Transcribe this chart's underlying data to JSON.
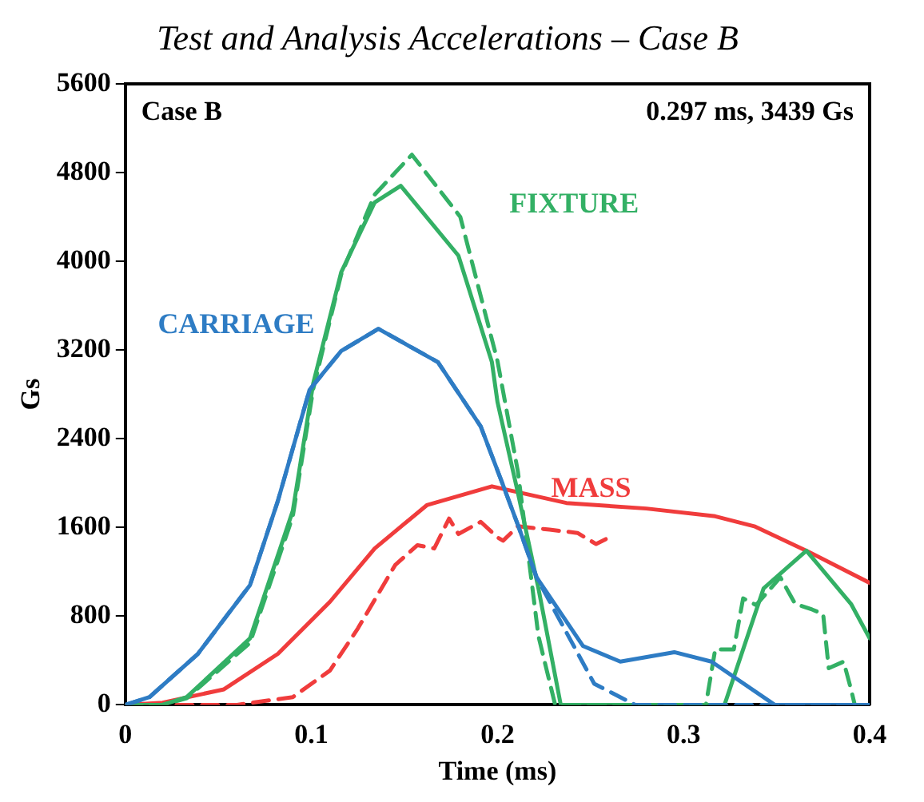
{
  "chart_data": {
    "type": "line",
    "title": "Test and Analysis Accelerations – Case B",
    "xlabel": "Time (ms)",
    "ylabel": "Gs",
    "annotations": [
      "Case B",
      "0.297 ms, 3439 Gs"
    ],
    "xlim": [
      0,
      0.4
    ],
    "xticks": [
      0,
      0.1,
      0.2,
      0.3,
      0.4
    ],
    "ylim": [
      0,
      5600
    ],
    "yticks": [
      0,
      800,
      1600,
      2400,
      3200,
      4000,
      4800,
      5600
    ],
    "grid": false,
    "legend": false,
    "marker": "none",
    "series": [
      {
        "name": "CARRIAGE",
        "color": "#2e7cc4",
        "line_style": "solid",
        "x": [
          0,
          0.013,
          0.039,
          0.067,
          0.082,
          0.099,
          0.116,
          0.136,
          0.168,
          0.191,
          0.203,
          0.211,
          0.221,
          0.246,
          0.266,
          0.295,
          0.315,
          0.349,
          0.4
        ],
        "values": [
          0,
          70,
          460,
          1080,
          1840,
          2840,
          3190,
          3390,
          3090,
          2510,
          1980,
          1620,
          1150,
          530,
          390,
          475,
          390,
          0,
          0
        ]
      },
      {
        "color": "#2e7cc4",
        "line_style": "dashed",
        "x": [
          0,
          0.013,
          0.039,
          0.067,
          0.082,
          0.099,
          0.116,
          0.136,
          0.168,
          0.191,
          0.203,
          0.211,
          0.221,
          0.252,
          0.274,
          0.4
        ],
        "values": [
          0,
          70,
          460,
          1080,
          1840,
          2840,
          3190,
          3390,
          3090,
          2510,
          1980,
          1620,
          1150,
          190,
          0,
          0
        ]
      },
      {
        "name": "FIXTURE",
        "color": "#33b065",
        "line_style": "solid",
        "x": [
          0,
          0.02,
          0.033,
          0.067,
          0.09,
          0.101,
          0.116,
          0.134,
          0.148,
          0.179,
          0.197,
          0.2,
          0.211,
          0.222,
          0.234,
          0.322,
          0.343,
          0.366,
          0.39,
          0.4
        ],
        "values": [
          0,
          0,
          70,
          600,
          1750,
          2900,
          3900,
          4530,
          4680,
          4050,
          3090,
          2730,
          1910,
          1050,
          0,
          0,
          1050,
          1390,
          910,
          600
        ]
      },
      {
        "color": "#33b065",
        "line_style": "dashed",
        "x": [
          0,
          0.02,
          0.033,
          0.067,
          0.09,
          0.101,
          0.116,
          0.134,
          0.154,
          0.18,
          0.2,
          0.211,
          0.222,
          0.231,
          0.312,
          0.317,
          0.327,
          0.332,
          0.339,
          0.352,
          0.36,
          0.369,
          0.375,
          0.378,
          0.386,
          0.39,
          0.392,
          0.4
        ],
        "values": [
          0,
          0,
          60,
          560,
          1700,
          2850,
          3880,
          4600,
          4960,
          4400,
          3100,
          2100,
          620,
          0,
          0,
          500,
          500,
          960,
          900,
          1150,
          910,
          860,
          820,
          330,
          390,
          140,
          0,
          0
        ]
      },
      {
        "name": "MASS",
        "color": "#f03c3c",
        "line_style": "solid",
        "x": [
          0,
          0.02,
          0.053,
          0.082,
          0.11,
          0.134,
          0.162,
          0.197,
          0.237,
          0.28,
          0.317,
          0.338,
          0.366,
          0.4
        ],
        "values": [
          0,
          20,
          140,
          460,
          930,
          1410,
          1800,
          1970,
          1820,
          1770,
          1700,
          1610,
          1390,
          1100
        ]
      },
      {
        "color": "#f03c3c",
        "line_style": "dashed",
        "x": [
          0,
          0.06,
          0.09,
          0.11,
          0.125,
          0.145,
          0.157,
          0.166,
          0.174,
          0.179,
          0.191,
          0.2,
          0.203,
          0.211,
          0.228,
          0.243,
          0.253,
          0.26
        ],
        "values": [
          0,
          0,
          70,
          310,
          690,
          1260,
          1440,
          1410,
          1680,
          1540,
          1650,
          1510,
          1480,
          1610,
          1580,
          1550,
          1450,
          1510
        ]
      }
    ]
  }
}
